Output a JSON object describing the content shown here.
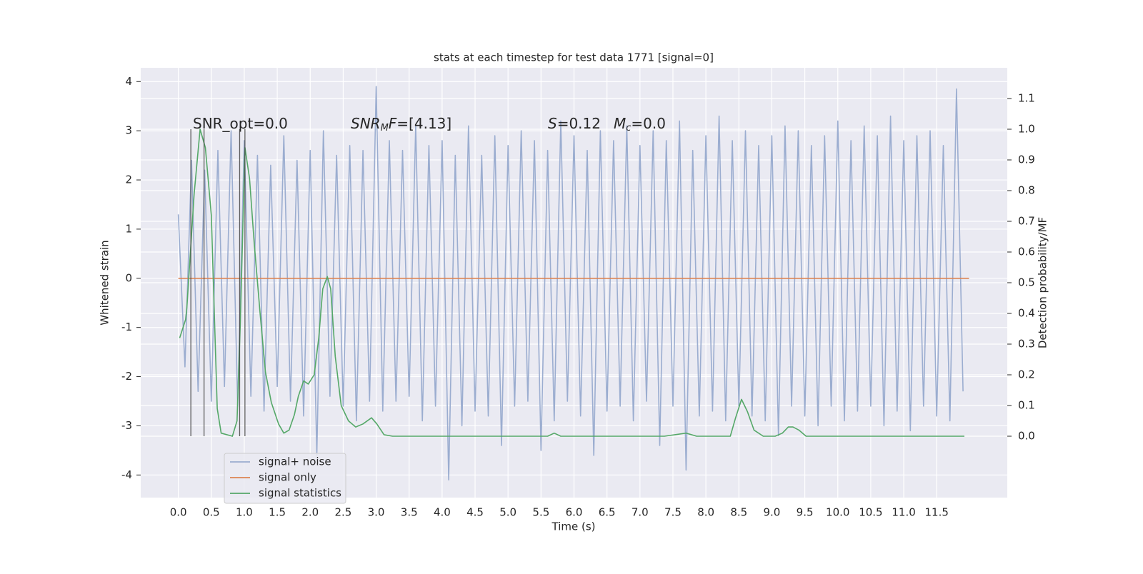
{
  "chart_data": {
    "type": "line",
    "title": "stats at each timestep for test data 1771 [signal=0]",
    "xlabel": "Time (s)",
    "ylabel": "Whitened strain",
    "y2label": "Detection probability/MF",
    "xlim": [
      -0.57,
      12.57
    ],
    "ylim": [
      -4.46,
      4.28
    ],
    "y2lim": [
      -0.2,
      1.2
    ],
    "xticks": [
      {
        "value": 0,
        "label": "0.0"
      },
      0.5,
      {
        "value": 1,
        "label": "1.0"
      },
      1.5,
      {
        "value": 2,
        "label": "2.0"
      },
      2.5,
      {
        "value": 3,
        "label": "3.0"
      },
      3.5,
      {
        "value": 4,
        "label": "4.0"
      },
      4.5,
      {
        "value": 5,
        "label": "5.0"
      },
      5.5,
      {
        "value": 6,
        "label": "6.0"
      },
      6.5,
      {
        "value": 7,
        "label": "7.0"
      },
      7.5,
      {
        "value": 8,
        "label": "8.0"
      },
      8.5,
      {
        "value": 9,
        "label": "9.0"
      },
      9.5,
      {
        "value": 10,
        "label": "10.0"
      },
      10.5,
      {
        "value": 11,
        "label": "11.0"
      },
      11.5
    ],
    "yticks": [
      -4,
      -3,
      -2,
      -1,
      0,
      1,
      2,
      3,
      4
    ],
    "y2ticks": [
      {
        "value": 0,
        "label": "0.0"
      },
      0.1,
      0.2,
      0.3,
      0.4,
      0.5,
      0.6,
      0.7,
      0.8,
      0.9,
      {
        "value": 1,
        "label": "1.0"
      },
      1.1
    ],
    "grid": true,
    "legend": "lower left",
    "series": [
      {
        "name": "signal+ noise",
        "color": "#9badd0",
        "axis": "y",
        "x": [
          0.0,
          0.1,
          0.2,
          0.3,
          0.4,
          0.5,
          0.6,
          0.7,
          0.8,
          0.9,
          1.0,
          1.1,
          1.2,
          1.3,
          1.4,
          1.5,
          1.6,
          1.7,
          1.8,
          1.9,
          2.0,
          2.1,
          2.2,
          2.3,
          2.4,
          2.5,
          2.6,
          2.7,
          2.8,
          2.9,
          3.0,
          3.1,
          3.2,
          3.3,
          3.4,
          3.5,
          3.6,
          3.7,
          3.8,
          3.9,
          4.0,
          4.1,
          4.2,
          4.3,
          4.4,
          4.5,
          4.6,
          4.7,
          4.8,
          4.9,
          5.0,
          5.1,
          5.2,
          5.3,
          5.4,
          5.5,
          5.6,
          5.7,
          5.8,
          5.9,
          6.0,
          6.1,
          6.2,
          6.3,
          6.4,
          6.5,
          6.6,
          6.7,
          6.8,
          6.9,
          7.0,
          7.1,
          7.2,
          7.3,
          7.4,
          7.5,
          7.6,
          7.7,
          7.8,
          7.9,
          8.0,
          8.1,
          8.2,
          8.3,
          8.4,
          8.5,
          8.6,
          8.7,
          8.8,
          8.9,
          9.0,
          9.1,
          9.2,
          9.3,
          9.4,
          9.5,
          9.6,
          9.7,
          9.8,
          9.9,
          10.0,
          10.1,
          10.2,
          10.3,
          10.4,
          10.5,
          10.6,
          10.7,
          10.8,
          10.9,
          11.0,
          11.1,
          11.2,
          11.3,
          11.4,
          11.5,
          11.6,
          11.7,
          11.8,
          11.9
        ],
        "values": [
          1.3,
          -1.8,
          2.4,
          -2.3,
          2.2,
          -2.5,
          2.6,
          -2.2,
          3.0,
          -2.6,
          2.8,
          -2.4,
          2.5,
          -2.7,
          2.3,
          -2.2,
          2.9,
          -2.5,
          2.4,
          -2.8,
          2.6,
          -3.6,
          3.0,
          -2.4,
          2.5,
          -2.6,
          2.7,
          -2.9,
          2.6,
          -2.5,
          3.9,
          -2.7,
          2.8,
          -2.5,
          2.6,
          -2.4,
          3.1,
          -2.9,
          2.7,
          -2.6,
          2.8,
          -4.1,
          2.5,
          -3.0,
          3.1,
          -2.7,
          2.5,
          -2.8,
          2.9,
          -3.4,
          2.7,
          -2.6,
          3.0,
          -2.5,
          2.8,
          -3.5,
          2.6,
          -2.9,
          3.2,
          -2.5,
          2.9,
          -2.8,
          2.6,
          -3.6,
          3.0,
          -2.7,
          2.8,
          -2.6,
          3.1,
          -2.9,
          2.7,
          -2.5,
          3.0,
          -3.4,
          2.8,
          -2.6,
          3.2,
          -3.9,
          2.6,
          -2.8,
          2.9,
          -2.7,
          3.3,
          -2.9,
          2.8,
          -2.6,
          3.0,
          -2.8,
          2.7,
          -2.9,
          2.9,
          -3.2,
          3.1,
          -2.6,
          3.0,
          -2.8,
          2.7,
          -3.0,
          2.9,
          -2.6,
          3.2,
          -2.9,
          2.8,
          -2.7,
          3.1,
          -2.6,
          2.9,
          -3.0,
          3.3,
          -2.7,
          2.8,
          -3.1,
          2.9,
          -2.6,
          3.0,
          -2.8,
          2.7,
          -2.9,
          3.85,
          -2.3
        ]
      },
      {
        "name": "signal only",
        "color": "#dd8452",
        "axis": "y",
        "x": [
          0.0,
          11.99
        ],
        "values": [
          0,
          0
        ]
      },
      {
        "name": "signal statistics",
        "color": "#55a868",
        "axis": "y2",
        "x": [
          0.02,
          0.11,
          0.13,
          0.24,
          0.33,
          0.41,
          0.5,
          0.59,
          0.65,
          0.82,
          0.89,
          0.94,
          1.01,
          1.08,
          1.15,
          1.24,
          1.32,
          1.41,
          1.52,
          1.6,
          1.68,
          1.76,
          1.82,
          1.9,
          1.97,
          2.06,
          2.13,
          2.19,
          2.26,
          2.31,
          2.38,
          2.47,
          2.58,
          2.69,
          2.8,
          2.93,
          3.01,
          3.12,
          3.25,
          3.74,
          3.85,
          4.88,
          5.0,
          5.6,
          5.7,
          5.8,
          7.37,
          7.7,
          7.86,
          8.24,
          8.37,
          8.45,
          8.54,
          8.63,
          8.73,
          8.87,
          9.05,
          9.16,
          9.25,
          9.32,
          9.41,
          9.52,
          9.86,
          10.08,
          10.95,
          11.92
        ],
        "values": [
          0.32,
          0.38,
          0.42,
          0.79,
          1.0,
          0.94,
          0.72,
          0.09,
          0.01,
          0.0,
          0.05,
          0.37,
          0.94,
          0.84,
          0.63,
          0.4,
          0.21,
          0.11,
          0.04,
          0.01,
          0.02,
          0.07,
          0.13,
          0.18,
          0.17,
          0.2,
          0.32,
          0.48,
          0.52,
          0.48,
          0.26,
          0.1,
          0.05,
          0.03,
          0.04,
          0.06,
          0.04,
          0.005,
          0.0,
          0.0,
          0.0,
          0.0,
          0.0,
          0.0,
          0.01,
          0.0,
          0.0,
          0.01,
          0.0,
          0.0,
          0.0,
          0.06,
          0.12,
          0.08,
          0.02,
          0.0,
          0.0,
          0.01,
          0.03,
          0.03,
          0.02,
          0.0,
          0.0,
          0.0,
          0.0,
          0.0
        ]
      }
    ],
    "vlines": {
      "x": [
        0.19,
        0.39,
        0.93,
        1.01
      ],
      "y2range": [
        0,
        1
      ],
      "color": "#444444"
    },
    "annotations": [
      [
        {
          "text": "SNR_opt=0.0"
        }
      ],
      [
        {
          "text": "SNR",
          "italic": true
        },
        {
          "text": "M",
          "italic": true,
          "sub": true
        },
        {
          "text": "F",
          "italic": true
        },
        {
          "text": "=[4.13]"
        }
      ],
      [
        {
          "text": "S",
          "italic": true
        },
        {
          "text": "=0.12"
        }
      ],
      [
        {
          "text": "M",
          "italic": true
        },
        {
          "text": "c",
          "italic": true,
          "sub": true
        },
        {
          "text": "=0.0"
        }
      ]
    ]
  }
}
